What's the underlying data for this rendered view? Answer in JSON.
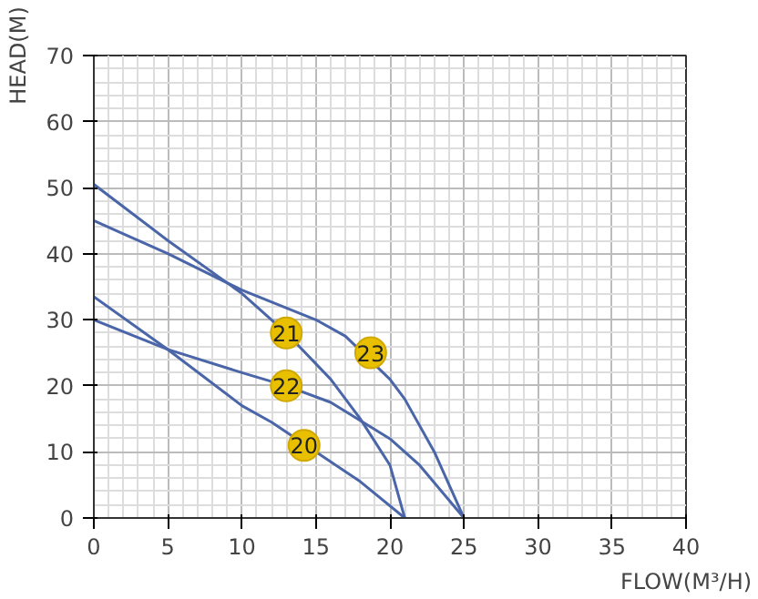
{
  "chart_data": {
    "type": "line",
    "xlabel": "FLOW(M³/H)",
    "ylabel": "HEAD(M)",
    "xlim": [
      0,
      40
    ],
    "ylim": [
      0,
      70
    ],
    "xticks": [
      0,
      5,
      10,
      15,
      20,
      25,
      30,
      35,
      40
    ],
    "yticks": [
      0,
      10,
      20,
      30,
      40,
      50,
      60,
      70
    ],
    "grid": true,
    "marker": "none",
    "line_style": "solid",
    "series": [
      {
        "color": "#4a66a8",
        "x": [
          0,
          5,
          10,
          12,
          16,
          18,
          21
        ],
        "values": [
          33.5,
          25.5,
          17,
          14.5,
          8.5,
          5.5,
          0
        ]
      },
      {
        "color": "#4a66a8",
        "x": [
          0,
          5,
          10,
          13,
          16,
          18,
          20,
          21
        ],
        "values": [
          50.5,
          42,
          34,
          28,
          21,
          15,
          8,
          0
        ]
      },
      {
        "color": "#4a66a8",
        "x": [
          0,
          5,
          10,
          13,
          16,
          20,
          22,
          25
        ],
        "values": [
          30,
          25.5,
          22,
          20,
          17.5,
          12,
          8,
          0
        ]
      },
      {
        "color": "#4a66a8",
        "x": [
          0,
          5,
          10,
          15,
          17,
          20,
          21,
          23,
          25
        ],
        "values": [
          45,
          40,
          34.5,
          30,
          27.5,
          21,
          18,
          10,
          0
        ]
      }
    ],
    "annotations": [
      {
        "text": "21",
        "x": 13,
        "y": 28
      },
      {
        "text": "22",
        "x": 13,
        "y": 20
      },
      {
        "text": "23",
        "x": 18.7,
        "y": 25
      },
      {
        "text": "20",
        "x": 14.2,
        "y": 11
      }
    ]
  }
}
